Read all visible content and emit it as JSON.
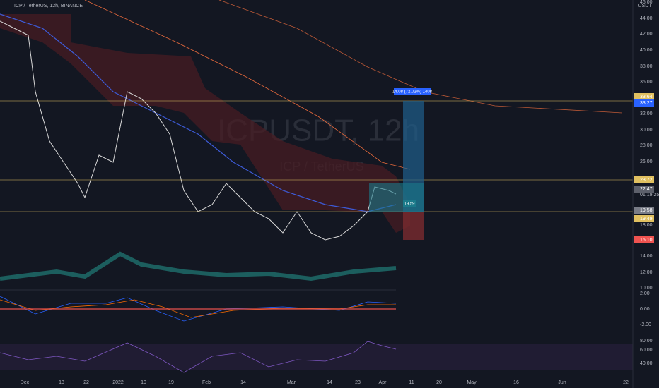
{
  "header": {
    "symbol": "ICP / TetherUS, 12h, BINANCE",
    "currency": "USDT"
  },
  "watermark": {
    "ticker": "ICPUSDT, 12h",
    "name": "ICP / TetherUS"
  },
  "position": {
    "target_label": "14.08 (72.02%) 1408",
    "entry_label": "19.59"
  },
  "price_axis": {
    "labels": [
      "46.00",
      "44.00",
      "42.00",
      "40.00",
      "38.00",
      "36.00",
      "32.00",
      "30.00",
      "28.00",
      "26.00",
      "18.00",
      "14.00",
      "12.00",
      "10.00"
    ],
    "badges": {
      "target": "33.64",
      "target2": "33.27",
      "resistance": "23.72",
      "last": "22.47",
      "countdown": "01:19:25",
      "grey": "19.58",
      "support": "19.49",
      "stop": "16.10"
    }
  },
  "macd_axis": {
    "labels": [
      "2.00",
      "0.00",
      "-2.00"
    ]
  },
  "rsi_axis": {
    "labels": [
      "80.00",
      "60.00",
      "40.00"
    ]
  },
  "time_axis": {
    "labels": [
      "Dec",
      "13",
      "22",
      "2022",
      "10",
      "19",
      "Feb",
      "14",
      "Mar",
      "14",
      "23",
      "Apr",
      "11",
      "20",
      "May",
      "16",
      "Jun",
      "22"
    ]
  }
}
